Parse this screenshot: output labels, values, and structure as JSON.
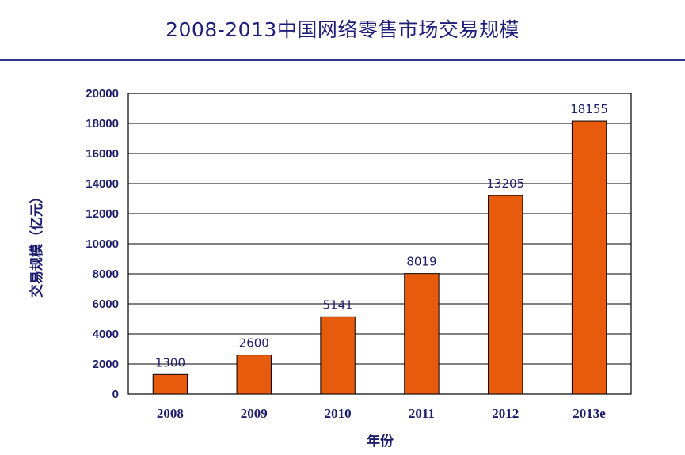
{
  "page": {
    "title": "2008-2013中国网络零售市场交易规模"
  },
  "colors": {
    "bar": "#e85a0c",
    "bar_outline": "#000000",
    "text": "#1c1c6b",
    "rule": "#2b3890",
    "grid": "#000000"
  },
  "chart_data": {
    "type": "bar",
    "title": "2008-2013中国网络零售市场交易规模",
    "xlabel": "年份",
    "ylabel": "交易规模（亿元）",
    "categories": [
      "2008",
      "2009",
      "2010",
      "2011",
      "2012",
      "2013e"
    ],
    "values": [
      1300,
      2600,
      5141,
      8019,
      13205,
      18155
    ],
    "data_labels": [
      "1300",
      "2600",
      "5141",
      "8019",
      "13205",
      "18155"
    ],
    "ylim": [
      0,
      20000
    ],
    "yticks": [
      0,
      2000,
      4000,
      6000,
      8000,
      10000,
      12000,
      14000,
      16000,
      18000,
      20000
    ],
    "grid": true,
    "legend": "none"
  }
}
